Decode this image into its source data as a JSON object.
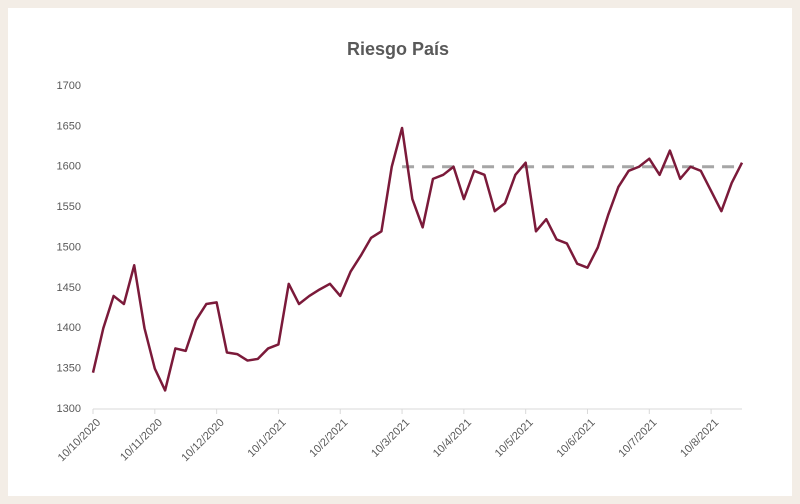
{
  "chart_data": {
    "type": "line",
    "title": "Riesgo País",
    "categories": [
      "10/10/2020",
      null,
      null,
      null,
      null,
      null,
      "10/11/2020",
      null,
      null,
      null,
      null,
      null,
      "10/12/2020",
      null,
      null,
      null,
      null,
      null,
      "10/1/2021",
      null,
      null,
      null,
      null,
      null,
      "10/2/2021",
      null,
      null,
      null,
      null,
      null,
      "10/3/2021",
      null,
      null,
      null,
      null,
      null,
      "10/4/2021",
      null,
      null,
      null,
      null,
      null,
      "10/5/2021",
      null,
      null,
      null,
      null,
      null,
      "10/6/2021",
      null,
      null,
      null,
      null,
      null,
      "10/7/2021",
      null,
      null,
      null,
      null,
      null,
      "10/8/2021",
      null,
      null,
      null
    ],
    "series": [
      {
        "name": "Riesgo País",
        "color": "#7b1a3a",
        "values": [
          1345,
          1400,
          1440,
          1430,
          1478,
          1400,
          1350,
          1323,
          1375,
          1372,
          1410,
          1430,
          1432,
          1370,
          1368,
          1360,
          1362,
          1375,
          1380,
          1455,
          1430,
          1440,
          1448,
          1455,
          1440,
          1470,
          1490,
          1512,
          1520,
          1600,
          1648,
          1560,
          1525,
          1585,
          1590,
          1600,
          1560,
          1595,
          1590,
          1545,
          1555,
          1590,
          1605,
          1520,
          1535,
          1510,
          1505,
          1480,
          1475,
          1500,
          1540,
          1575,
          1595,
          1600,
          1610,
          1590,
          1620,
          1585,
          1600,
          1595,
          1570,
          1545,
          1580,
          1605
        ]
      }
    ],
    "reference_line": {
      "value": 1600,
      "start": "10/3/2021",
      "color": "#a6a6a6"
    },
    "ylim": [
      1300,
      1700
    ],
    "yticks": [
      1300,
      1350,
      1400,
      1450,
      1500,
      1550,
      1600,
      1650,
      1700
    ]
  }
}
